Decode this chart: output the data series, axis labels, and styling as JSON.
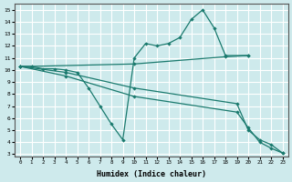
{
  "xlabel": "Humidex (Indice chaleur)",
  "xlim": [
    -0.5,
    23.5
  ],
  "ylim": [
    2.8,
    15.5
  ],
  "yticks": [
    3,
    4,
    5,
    6,
    7,
    8,
    9,
    10,
    11,
    12,
    13,
    14,
    15
  ],
  "xticks": [
    0,
    1,
    2,
    3,
    4,
    5,
    6,
    7,
    8,
    9,
    10,
    11,
    12,
    13,
    14,
    15,
    16,
    17,
    18,
    19,
    20,
    21,
    22,
    23
  ],
  "bg_color": "#ceeaec",
  "grid_color": "#ffffff",
  "line_color": "#1a7a6e",
  "lines": [
    {
      "x": [
        0,
        1,
        2,
        3,
        4,
        5,
        6,
        7,
        8,
        9,
        10,
        11,
        12,
        13,
        14,
        15,
        16,
        17,
        18,
        20
      ],
      "y": [
        10.3,
        10.3,
        10.1,
        10.1,
        10.0,
        9.8,
        8.5,
        7.0,
        5.5,
        4.2,
        11.0,
        12.2,
        12.0,
        12.2,
        12.7,
        14.2,
        15.0,
        13.5,
        11.2,
        11.2
      ]
    },
    {
      "x": [
        0,
        1,
        10,
        18,
        20
      ],
      "y": [
        10.3,
        10.3,
        10.5,
        11.1,
        11.2
      ]
    },
    {
      "x": [
        0,
        4,
        10,
        19,
        20,
        21,
        22,
        23
      ],
      "y": [
        10.3,
        9.8,
        8.5,
        7.2,
        5.0,
        4.2,
        3.8,
        3.1
      ]
    },
    {
      "x": [
        0,
        4,
        10,
        19,
        20,
        21,
        22,
        23
      ],
      "y": [
        10.3,
        9.5,
        7.8,
        6.5,
        5.2,
        4.0,
        3.5,
        3.1
      ]
    }
  ]
}
